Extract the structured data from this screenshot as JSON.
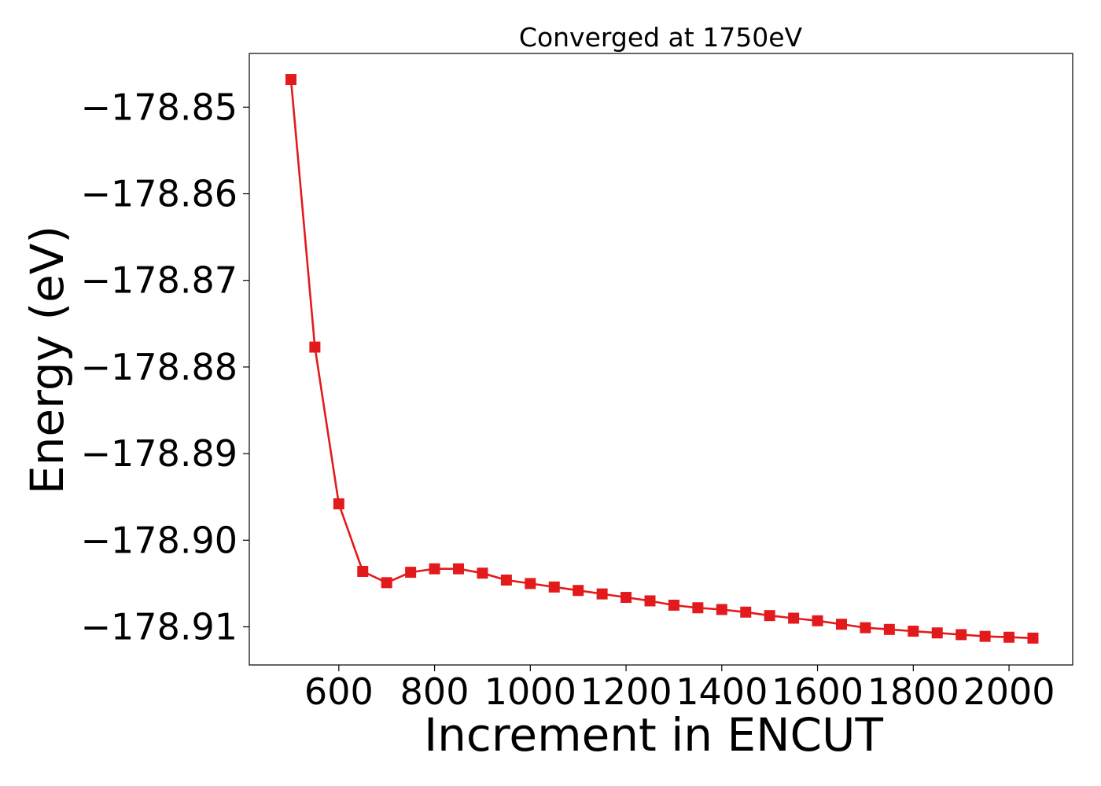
{
  "chart_data": {
    "type": "line",
    "title": "Converged at 1750eV",
    "xlabel": "Increment in ENCUT",
    "ylabel": "Energy (eV)",
    "xlim": [
      413,
      2133
    ],
    "ylim": [
      -178.9144,
      -178.8438
    ],
    "x_ticks": [
      600,
      800,
      1000,
      1200,
      1400,
      1600,
      1800,
      2000
    ],
    "x_tick_labels": [
      "600",
      "800",
      "1000",
      "1200",
      "1400",
      "1600",
      "1800",
      "2000"
    ],
    "y_ticks": [
      -178.85,
      -178.86,
      -178.87,
      -178.88,
      -178.89,
      -178.9,
      -178.91
    ],
    "y_tick_labels": [
      "−178.85",
      "−178.86",
      "−178.87",
      "−178.88",
      "−178.89",
      "−178.90",
      "−178.91"
    ],
    "grid": false,
    "series": [
      {
        "color": "#e31a1c",
        "marker": "square",
        "x": [
          500,
          550,
          600,
          650,
          700,
          750,
          800,
          850,
          900,
          950,
          1000,
          1050,
          1100,
          1150,
          1200,
          1250,
          1300,
          1350,
          1400,
          1450,
          1500,
          1550,
          1600,
          1650,
          1700,
          1750,
          1800,
          1850,
          1900,
          1950,
          2000,
          2050
        ],
        "y": [
          -178.8468,
          -178.8777,
          -178.8958,
          -178.9036,
          -178.9049,
          -178.9037,
          -178.9033,
          -178.9033,
          -178.9038,
          -178.9046,
          -178.905,
          -178.9054,
          -178.9058,
          -178.9062,
          -178.9066,
          -178.907,
          -178.9075,
          -178.9078,
          -178.908,
          -178.9083,
          -178.9087,
          -178.909,
          -178.9093,
          -178.9097,
          -178.9101,
          -178.9103,
          -178.9105,
          -178.9107,
          -178.9109,
          -178.9111,
          -178.9112,
          -178.9113
        ]
      }
    ]
  }
}
